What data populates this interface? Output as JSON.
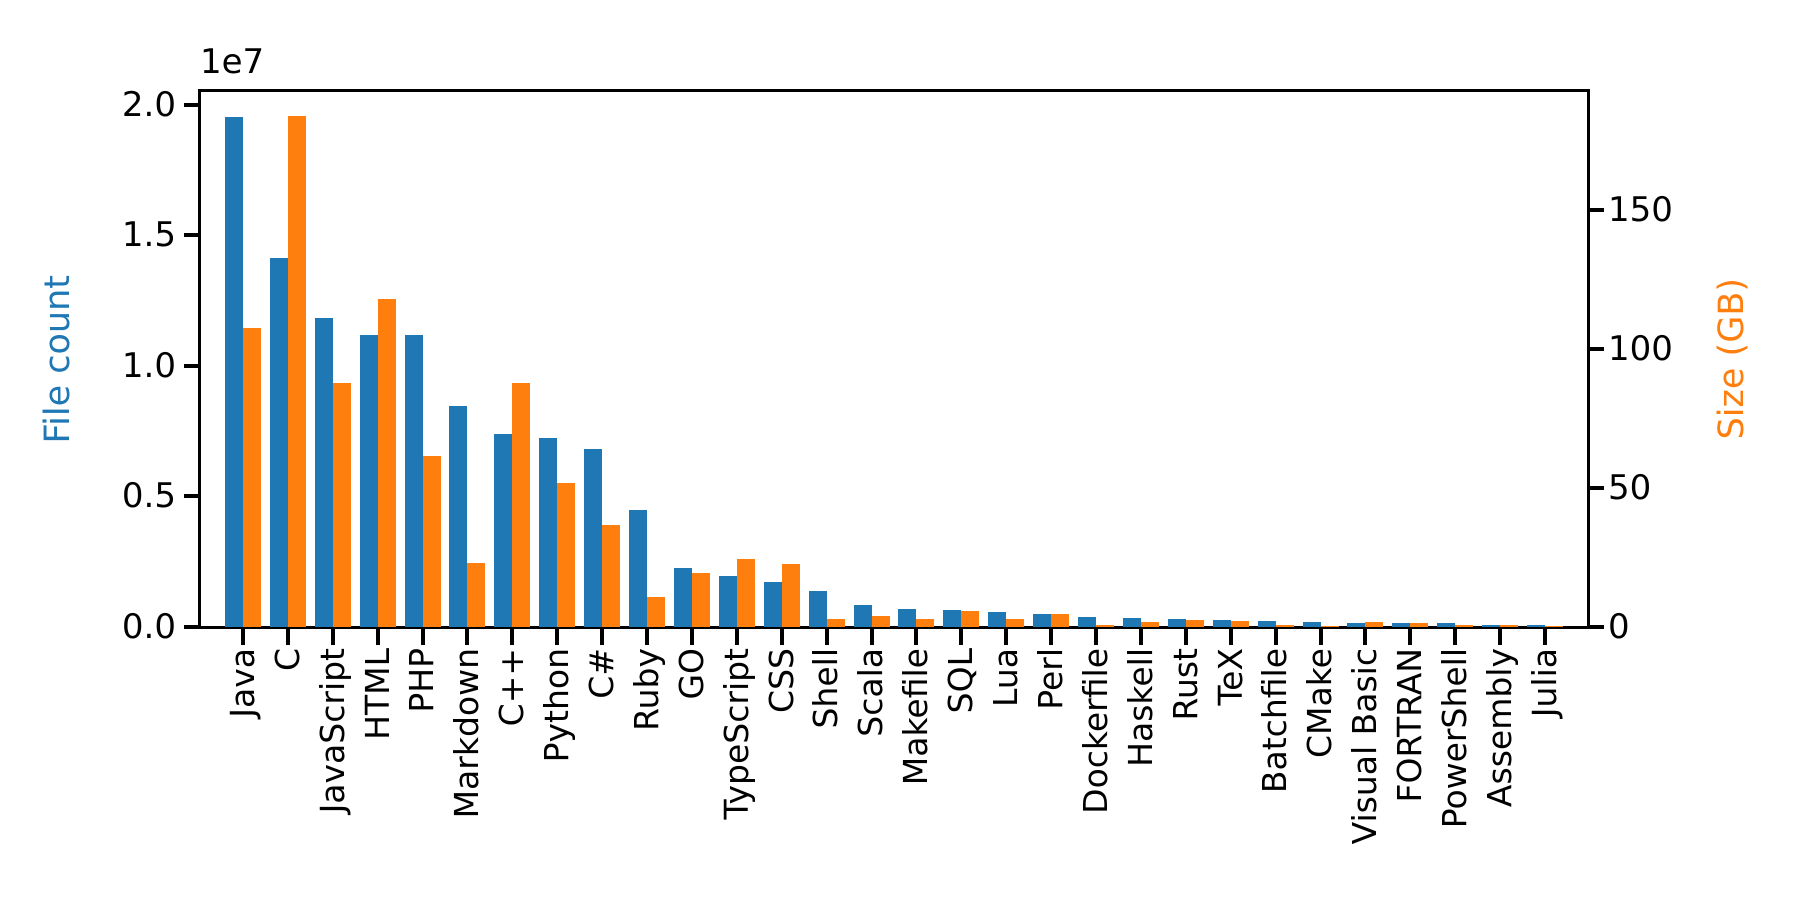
{
  "chart_data": {
    "type": "bar",
    "title": "",
    "grid": false,
    "legend": "none",
    "background": "#ffffff",
    "spine_color": "#000000",
    "x_tick_rotation": 90,
    "categories": [
      "Java",
      "C",
      "JavaScript",
      "HTML",
      "PHP",
      "Markdown",
      "C++",
      "Python",
      "C#",
      "Ruby",
      "GO",
      "TypeScript",
      "CSS",
      "Shell",
      "Scala",
      "Makefile",
      "SQL",
      "Lua",
      "Perl",
      "Dockerfile",
      "Haskell",
      "Rust",
      "TeX",
      "Batchfile",
      "CMake",
      "Visual Basic",
      "FORTRAN",
      "PowerShell",
      "Assembly",
      "Julia"
    ],
    "series": [
      {
        "name": "File count",
        "axis": "left",
        "color": "#1f77b4",
        "values": [
          19548190,
          14143113,
          11839883,
          11178557,
          11177610,
          8464626,
          7380520,
          7226626,
          6811652,
          4473331,
          2265436,
          1940406,
          1734406,
          1385648,
          835755,
          679430,
          656671,
          578554,
          497949,
          366505,
          340623,
          322431,
          251015,
          236945,
          175282,
          155652,
          142038,
          136846,
          82905,
          58317
        ]
      },
      {
        "name": "Size (GB)",
        "axis": "right",
        "color": "#ff7f0e",
        "values": [
          107.7,
          183.83,
          87.82,
          118.12,
          61.41,
          23.09,
          87.73,
          52.03,
          36.83,
          10.95,
          19.28,
          24.59,
          22.67,
          3.01,
          3.87,
          2.92,
          5.67,
          2.81,
          4.7,
          0.71,
          1.85,
          2.68,
          2.15,
          0.7,
          0.54,
          1.91,
          1.62,
          0.69,
          0.78,
          0.29
        ]
      }
    ],
    "left_axis": {
      "label": "File count",
      "color": "#1f77b4",
      "offset_text": "1e7",
      "tick_values": [
        0,
        5000000,
        10000000,
        15000000,
        20000000
      ],
      "tick_labels": [
        "0.0",
        "0.5",
        "1.0",
        "1.5",
        "2.0"
      ],
      "ylim": [
        0,
        20530000
      ]
    },
    "right_axis": {
      "label": "Size (GB)",
      "color": "#ff7f0e",
      "tick_values": [
        0,
        50,
        100,
        150
      ],
      "tick_labels": [
        "0",
        "50",
        "100",
        "150"
      ],
      "ylim": [
        0,
        193
      ]
    }
  }
}
